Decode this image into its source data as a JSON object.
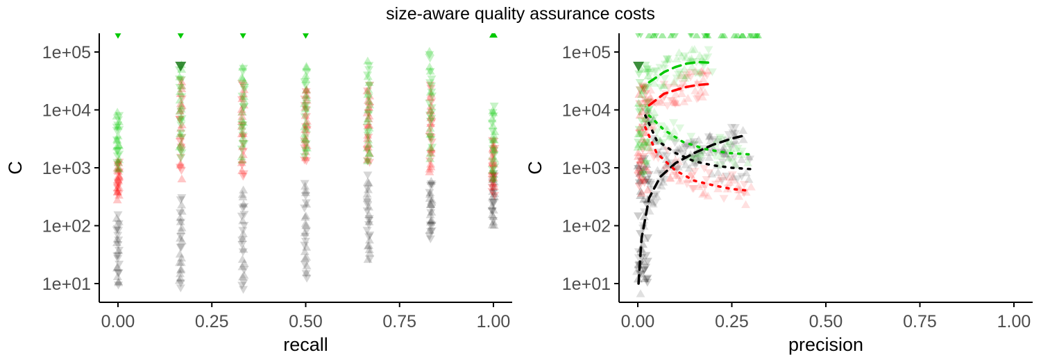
{
  "title": "size-aware quality assurance costs",
  "colors": {
    "black": "#000000",
    "red": "#ff0000",
    "green": "#00c800",
    "axis": "#000000",
    "tick_text": "#4d4d4d"
  },
  "chart_data": [
    {
      "type": "scatter",
      "xlabel": "recall",
      "ylabel": "C",
      "xlim": [
        0,
        1
      ],
      "ylim": [
        5,
        200000
      ],
      "y_scale": "log10",
      "x_ticks": [
        "0.00",
        "0.25",
        "0.50",
        "0.75",
        "1.00"
      ],
      "y_ticks": [
        "1e+01",
        "1e+02",
        "1e+03",
        "1e+04",
        "1e+05"
      ],
      "grid": false,
      "marker": "triangle, semi-transparent",
      "series": [
        {
          "color": "black",
          "x": [
            0,
            0.167,
            0.333,
            0.5,
            0.667,
            0.833,
            1
          ],
          "y_min": [
            9,
            8,
            8,
            12,
            25,
            60,
            100
          ],
          "y_max": [
            150,
            300,
            400,
            550,
            700,
            600,
            800
          ]
        },
        {
          "color": "red",
          "x": [
            0,
            0.167,
            0.333,
            0.5,
            0.667,
            0.833,
            1
          ],
          "y_min": [
            300,
            700,
            700,
            1300,
            1200,
            800,
            350
          ],
          "y_max": [
            1300,
            35000,
            30000,
            25000,
            25000,
            25000,
            3000
          ]
        },
        {
          "color": "green",
          "x": [
            0,
            0.167,
            0.333,
            0.5,
            0.667,
            0.833,
            1
          ],
          "y_min": [
            1000,
            1500,
            1500,
            1500,
            1200,
            1500,
            600
          ],
          "y_max": [
            9000,
            65000,
            60000,
            60000,
            70000,
            100000,
            12000
          ]
        }
      ]
    },
    {
      "type": "scatter",
      "xlabel": "precision",
      "ylabel": "C",
      "xlim": [
        0,
        1
      ],
      "ylim": [
        5,
        200000
      ],
      "y_scale": "log10",
      "x_ticks": [
        "0.00",
        "0.25",
        "0.50",
        "0.75",
        "1.00"
      ],
      "y_ticks": [
        "1e+01",
        "1e+02",
        "1e+03",
        "1e+04",
        "1e+05"
      ],
      "grid": false,
      "marker": "triangle, semi-transparent",
      "series": [
        {
          "color": "black",
          "line": "dashed",
          "x": [
            0.002,
            0.01,
            0.03,
            0.06,
            0.1,
            0.15,
            0.2,
            0.25,
            0.29
          ],
          "y": [
            10,
            60,
            300,
            700,
            1200,
            1800,
            2500,
            3200,
            3700
          ]
        },
        {
          "color": "black",
          "line": "dotted",
          "x": [
            0.02,
            0.05,
            0.1,
            0.15,
            0.2,
            0.25,
            0.3
          ],
          "y": [
            8000,
            3000,
            1800,
            1300,
            1100,
            1000,
            950
          ]
        },
        {
          "color": "red",
          "line": "dashed",
          "x": [
            0.03,
            0.07,
            0.1,
            0.13,
            0.16,
            0.19
          ],
          "y": [
            12000,
            19000,
            22000,
            25000,
            27000,
            28000
          ]
        },
        {
          "color": "red",
          "line": "dotted",
          "x": [
            0.02,
            0.05,
            0.1,
            0.15,
            0.2,
            0.25,
            0.3
          ],
          "y": [
            5000,
            1800,
            900,
            600,
            500,
            430,
            400
          ]
        },
        {
          "color": "green",
          "line": "dashed",
          "x": [
            0.03,
            0.07,
            0.1,
            0.13,
            0.16,
            0.2
          ],
          "y": [
            30000,
            45000,
            55000,
            63000,
            67000,
            65000
          ]
        },
        {
          "color": "green",
          "line": "dotted",
          "x": [
            0.03,
            0.07,
            0.12,
            0.18,
            0.24,
            0.3
          ],
          "y": [
            8000,
            4500,
            2800,
            2100,
            1800,
            1700
          ]
        }
      ]
    }
  ]
}
